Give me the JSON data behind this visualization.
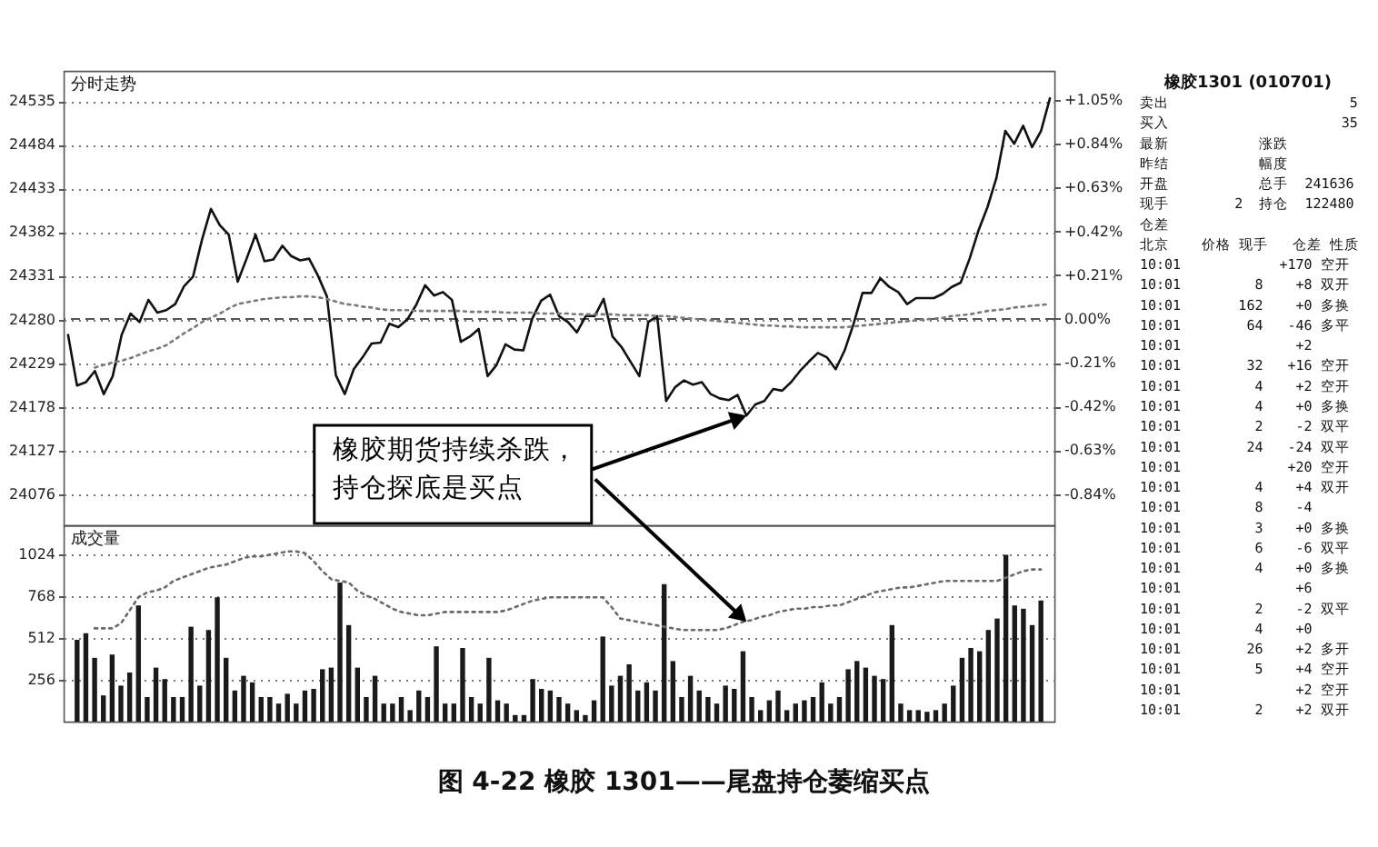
{
  "chart_data": [
    {
      "type": "line",
      "title": "分时走势",
      "categories": [
        null,
        null,
        null,
        null,
        null,
        null,
        null,
        null,
        null,
        null,
        null,
        null,
        null,
        null,
        null,
        null,
        null,
        null,
        null,
        null,
        null,
        null,
        null,
        null,
        null,
        null,
        null,
        null,
        null,
        null,
        null,
        null,
        null,
        null,
        null,
        null,
        null,
        null,
        null,
        null,
        null,
        null,
        null,
        null,
        null,
        null,
        null,
        null,
        null,
        null,
        null,
        null,
        null,
        null,
        null,
        null,
        null,
        null,
        null,
        null,
        null,
        null,
        null,
        null,
        null,
        null,
        null,
        null,
        null,
        null,
        null,
        null,
        null,
        null,
        null,
        null,
        null,
        null,
        null,
        null,
        null,
        null,
        null,
        null,
        null,
        null,
        null,
        null,
        null,
        null,
        null,
        null,
        null,
        null,
        null,
        null,
        null,
        null,
        null,
        null,
        null,
        null,
        null,
        null,
        null,
        null,
        null,
        null,
        null,
        null,
        null
      ],
      "series": [
        {
          "color": "#111111",
          "values": [
            24262,
            24203,
            24207,
            24220,
            24193,
            24214,
            24262,
            24287,
            24277,
            24303,
            24288,
            24291,
            24298,
            24319,
            24330,
            24373,
            24409,
            24390,
            24379,
            24324,
            24351,
            24379,
            24348,
            24350,
            24366,
            24354,
            24349,
            24351,
            24331,
            24307,
            24215,
            24193,
            24222,
            24236,
            24252,
            24253,
            24275,
            24271,
            24280,
            24297,
            24320,
            24308,
            24312,
            24303,
            24254,
            24260,
            24269,
            24214,
            24227,
            24251,
            24245,
            24244,
            24281,
            24302,
            24309,
            24284,
            24277,
            24265,
            24284,
            24284,
            24304,
            24260,
            24248,
            24231,
            24214,
            24277,
            24284,
            24185,
            24201,
            24209,
            24204,
            24207,
            24193,
            24188,
            24186,
            24192,
            24168,
            24181,
            24185,
            24199,
            24197,
            24207,
            24220,
            24231,
            24241,
            24236,
            24222,
            24244,
            24275,
            24311,
            24311,
            24328,
            24318,
            24312,
            24298,
            24305,
            24305,
            24305,
            24310,
            24318,
            24323,
            24351,
            24384,
            24411,
            24445,
            24500,
            24485,
            24506,
            24481,
            24500,
            24538
          ]
        },
        {
          "color": "#7a7a7a",
          "line_style": "dotted",
          "values": [
            null,
            null,
            null,
            24224,
            24227,
            24230,
            24232,
            24235,
            24239,
            24243,
            24246,
            24250,
            24257,
            24264,
            24270,
            24277,
            24282,
            24287,
            24293,
            24298,
            24300,
            24302,
            24304,
            24305,
            24306,
            24306,
            24307,
            24307,
            24306,
            24304,
            24301,
            24298,
            24297,
            24295,
            24294,
            24292,
            24291,
            24291,
            24291,
            24290,
            24290,
            24290,
            24290,
            24290,
            24290,
            24289,
            24289,
            24289,
            24289,
            24288,
            24288,
            24288,
            24288,
            24287,
            24287,
            24287,
            24287,
            24286,
            24286,
            24286,
            24286,
            24286,
            24285,
            24285,
            24285,
            24285,
            24284,
            24284,
            24283,
            24282,
            24281,
            24280,
            24279,
            24278,
            24277,
            24276,
            24275,
            24274,
            24273,
            24273,
            24272,
            24272,
            24271,
            24271,
            24271,
            24271,
            24271,
            24271,
            24272,
            24273,
            24274,
            24275,
            24276,
            24277,
            24278,
            24279,
            24280,
            24281,
            24282,
            24284,
            24285,
            24286,
            24288,
            24290,
            24291,
            24292,
            24294,
            24295,
            24296,
            24297,
            24298
          ]
        }
      ],
      "ylim": [
        24040,
        24570
      ],
      "yticks": [
        24535,
        24484,
        24433,
        24382,
        24331,
        24280,
        24229,
        24178,
        24127,
        24076
      ],
      "y2lim": [
        -0.99,
        1.19
      ],
      "y2ticks": [
        {
          "value": 1.05,
          "label": "+1.05%"
        },
        {
          "value": 0.84,
          "label": "+0.84%"
        },
        {
          "value": 0.63,
          "label": "+0.63%"
        },
        {
          "value": 0.42,
          "label": "+0.42%"
        },
        {
          "value": 0.21,
          "label": "+0.21%"
        },
        {
          "value": 0,
          "label": "0.00%"
        },
        {
          "value": -0.21,
          "label": "-0.21%"
        },
        {
          "value": -0.42,
          "label": "-0.42%"
        },
        {
          "value": -0.63,
          "label": "-0.63%"
        },
        {
          "value": -0.84,
          "label": "-0.84%"
        }
      ],
      "ref_lines": [
        {
          "axis": "y2",
          "value": 0,
          "line_style": "dashed",
          "color": "#555555"
        }
      ],
      "grid": "y",
      "tick_labels": "y",
      "annotations": [
        "橡胶期货持续杀跌，持仓探底是买点",
        "图 4-22   橡胶 1301——尾盘持仓萎缩买点"
      ]
    },
    {
      "type": "bar",
      "title": "成交量",
      "categories": [
        null,
        null,
        null,
        null,
        null,
        null,
        null,
        null,
        null,
        null,
        null,
        null,
        null,
        null,
        null,
        null,
        null,
        null,
        null,
        null,
        null,
        null,
        null,
        null,
        null,
        null,
        null,
        null,
        null,
        null,
        null,
        null,
        null,
        null,
        null,
        null,
        null,
        null,
        null,
        null,
        null,
        null,
        null,
        null,
        null,
        null,
        null,
        null,
        null,
        null,
        null,
        null,
        null,
        null,
        null,
        null,
        null,
        null,
        null,
        null,
        null,
        null,
        null,
        null,
        null,
        null,
        null,
        null,
        null,
        null,
        null,
        null,
        null,
        null,
        null,
        null,
        null,
        null,
        null,
        null,
        null,
        null,
        null,
        null,
        null,
        null,
        null,
        null,
        null,
        null,
        null,
        null,
        null,
        null,
        null,
        null,
        null,
        null,
        null,
        null,
        null,
        null,
        null,
        null,
        null,
        null,
        null,
        null,
        null,
        null,
        null
      ],
      "series": [
        {
          "color": "#1a1a1a",
          "values": [
            500,
            540,
            390,
            160,
            410,
            220,
            300,
            710,
            150,
            330,
            260,
            150,
            150,
            580,
            220,
            560,
            760,
            390,
            190,
            280,
            240,
            150,
            150,
            110,
            170,
            110,
            190,
            200,
            320,
            330,
            850,
            590,
            330,
            150,
            280,
            110,
            110,
            150,
            70,
            190,
            150,
            460,
            110,
            110,
            450,
            150,
            110,
            390,
            130,
            110,
            40,
            40,
            260,
            200,
            190,
            150,
            110,
            70,
            40,
            130,
            520,
            220,
            280,
            350,
            190,
            240,
            190,
            840,
            370,
            150,
            280,
            190,
            150,
            110,
            220,
            200,
            430,
            150,
            70,
            130,
            190,
            70,
            110,
            130,
            150,
            240,
            110,
            150,
            320,
            370,
            330,
            280,
            260,
            590,
            110,
            70,
            70,
            60,
            70,
            110,
            220,
            390,
            450,
            430,
            560,
            630,
            1020,
            710,
            690,
            590,
            740
          ]
        },
        {
          "type": "line",
          "color": "#6a6a6a",
          "line_style": "dotted",
          "values": [
            null,
            null,
            570,
            570,
            570,
            600,
            680,
            760,
            790,
            800,
            820,
            860,
            880,
            900,
            920,
            940,
            950,
            960,
            980,
            1000,
            1010,
            1010,
            1020,
            1030,
            1040,
            1040,
            1030,
            980,
            920,
            870,
            860,
            850,
            800,
            770,
            750,
            720,
            690,
            670,
            660,
            650,
            650,
            660,
            670,
            670,
            670,
            670,
            670,
            670,
            670,
            680,
            700,
            720,
            740,
            750,
            760,
            760,
            760,
            760,
            760,
            760,
            760,
            700,
            630,
            620,
            610,
            600,
            590,
            580,
            570,
            560,
            560,
            560,
            560,
            560,
            570,
            590,
            610,
            620,
            640,
            650,
            670,
            680,
            690,
            690,
            700,
            700,
            710,
            710,
            730,
            750,
            770,
            790,
            800,
            810,
            820,
            820,
            830,
            840,
            850,
            860,
            860,
            860,
            860,
            860,
            860,
            860,
            880,
            900,
            920,
            930,
            930
          ]
        }
      ],
      "ylim": [
        0,
        1200
      ],
      "yticks": [
        256,
        512,
        768,
        1024
      ],
      "grid": "y",
      "tick_labels": "y"
    },
    {
      "type": "other",
      "title": "橡胶1301 (010701)",
      "annotations": [
        "卖出\t\t\t5",
        "买入\t\t\t35",
        "最新\t\t涨跌\t",
        "昨结\t\t幅度\t",
        "开盘\t\t总手\t241636",
        "现手\t2\t持仓\t122480",
        "仓差\t\t\t",
        "北京\t价格\t现手\t仓差\t性质",
        "10:01\t\t\t+170\t空开",
        "10:01\t\t8\t+8\t双开",
        "10:01\t\t162\t+0\t多换",
        "10:01\t\t64\t-46\t多平",
        "10:01\t\t\t+2\t",
        "10:01\t\t32\t+16\t空开",
        "10:01\t\t4\t+2\t空开",
        "10:01\t\t4\t+0\t多换",
        "10:01\t\t2\t-2\t双平",
        "10:01\t\t24\t-24\t双平",
        "10:01\t\t\t+20\t空开",
        "10:01\t\t4\t+4\t双开",
        "10:01\t\t8\t-4\t",
        "10:01\t\t3\t+0\t多换",
        "10:01\t\t6\t-6\t双平",
        "10:01\t\t4\t+0\t多换",
        "10:01\t\t\t+6\t",
        "10:01\t\t2\t-2\t双平",
        "10:01\t\t4\t+0\t",
        "10:01\t\t26\t+2\t多开",
        "10:01\t\t5\t+4\t空开",
        "10:01\t\t\t+2\t空开",
        "10:01\t\t2\t+2\t双开"
      ]
    }
  ]
}
